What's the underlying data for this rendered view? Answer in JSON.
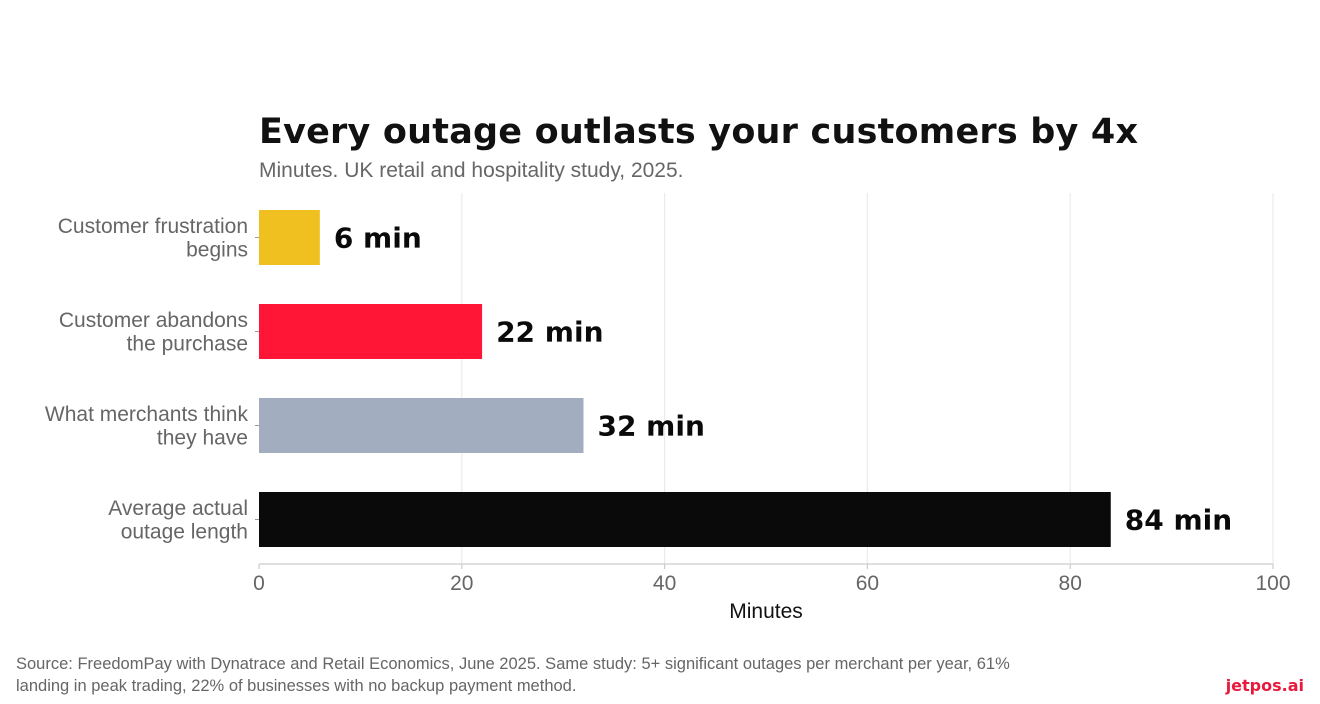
{
  "title": "Every outage outlasts your customers by 4x",
  "subtitle": "Minutes. UK retail and hospitality study, 2025.",
  "source": "Source: FreedomPay with Dynatrace and Retail Economics, June 2025. Same study: 5+ significant outages per merchant per year, 61% landing in peak trading, 22% of businesses with no backup payment method.",
  "brand": "jetpos.ai",
  "chart_data": {
    "type": "bar",
    "orientation": "horizontal",
    "categories": [
      [
        "Customer frustration",
        "begins"
      ],
      [
        "Customer abandons",
        "the purchase"
      ],
      [
        "What merchants think",
        "they have"
      ],
      [
        "Average actual",
        "outage length"
      ]
    ],
    "values": [
      6,
      22,
      32,
      84
    ],
    "data_labels": [
      "6 min",
      "22 min",
      "32 min",
      "84 min"
    ],
    "colors": [
      "#f0c020",
      "#ff1535",
      "#a2aec0",
      "#0a0a0a"
    ],
    "xlabel": "Minutes",
    "ylabel": "",
    "xlim": [
      0,
      100
    ],
    "xticks": [
      0,
      20,
      40,
      60,
      80,
      100
    ],
    "grid": "vertical"
  }
}
